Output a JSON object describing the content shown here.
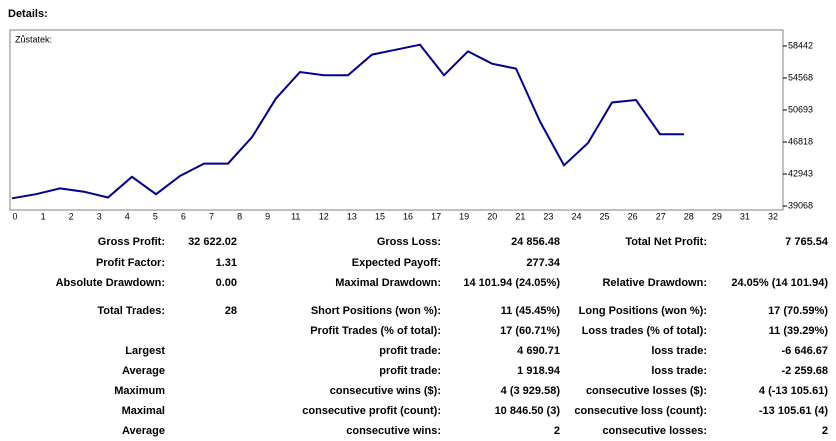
{
  "header": {
    "title": "Details:"
  },
  "chart_data": {
    "type": "line",
    "title": "Zůstatek:",
    "x": [
      0,
      1,
      2,
      3,
      4,
      5,
      6,
      7,
      8,
      9,
      10,
      11,
      12,
      13,
      14,
      15,
      16,
      17,
      18,
      19,
      20,
      21,
      22,
      23,
      24,
      25,
      26,
      27,
      28
    ],
    "series": [
      {
        "name": "Zůstatek",
        "color": "#00008b",
        "values": [
          40000,
          40500,
          41200,
          40800,
          40100,
          42600,
          40500,
          42700,
          44200,
          44200,
          47400,
          52100,
          55300,
          54900,
          54900,
          57400,
          58000,
          58600,
          54900,
          57800,
          56300,
          55700,
          49300,
          44000,
          46700,
          51600,
          51900,
          47765.54,
          47765.54
        ]
      }
    ],
    "xlim": [
      0,
      32
    ],
    "xtick_labels": [
      "0",
      "1",
      "2",
      "3",
      "4",
      "5",
      "6",
      "7",
      "8",
      "9",
      "11",
      "12",
      "13",
      "15",
      "16",
      "17",
      "19",
      "20",
      "21",
      "23",
      "24",
      "25",
      "26",
      "27",
      "28",
      "29",
      "31",
      "32"
    ],
    "ylim": [
      38705,
      60259
    ],
    "yticks": [
      39068,
      42943,
      46818,
      50693,
      54568,
      58442
    ]
  },
  "table": {
    "rows": [
      [
        "Gross Profit:",
        "32 622.02",
        "Gross Loss:",
        "24 856.48",
        "Total Net Profit:",
        "7 765.54"
      ],
      [
        "Profit Factor:",
        "1.31",
        "Expected Payoff:",
        "277.34",
        null,
        null
      ],
      [
        "Absolute Drawdown:",
        "0.00",
        "Maximal Drawdown:",
        "14 101.94 (24.05%)",
        "Relative Drawdown:",
        "24.05% (14 101.94)"
      ],
      [
        "Total Trades:",
        "28",
        "Short Positions (won %):",
        "11 (45.45%)",
        "Long Positions (won %):",
        "17 (70.59%)"
      ],
      [
        null,
        null,
        "Profit Trades (% of total):",
        "17 (60.71%)",
        "Loss trades (% of total):",
        "11 (39.29%)"
      ],
      [
        "Largest",
        null,
        "profit trade:",
        "4 690.71",
        "loss trade:",
        "-6 646.67"
      ],
      [
        "Average",
        null,
        "profit trade:",
        "1 918.94",
        "loss trade:",
        "-2 259.68"
      ],
      [
        "Maximum",
        null,
        "consecutive wins ($):",
        "4 (3 929.58)",
        "consecutive losses ($):",
        "4 (-13 105.61)"
      ],
      [
        "Maximal",
        null,
        "consecutive profit (count):",
        "10 846.50 (3)",
        "consecutive loss (count):",
        "-13 105.61 (4)"
      ],
      [
        "Average",
        null,
        "consecutive wins:",
        "2",
        "consecutive losses:",
        "2"
      ]
    ]
  }
}
